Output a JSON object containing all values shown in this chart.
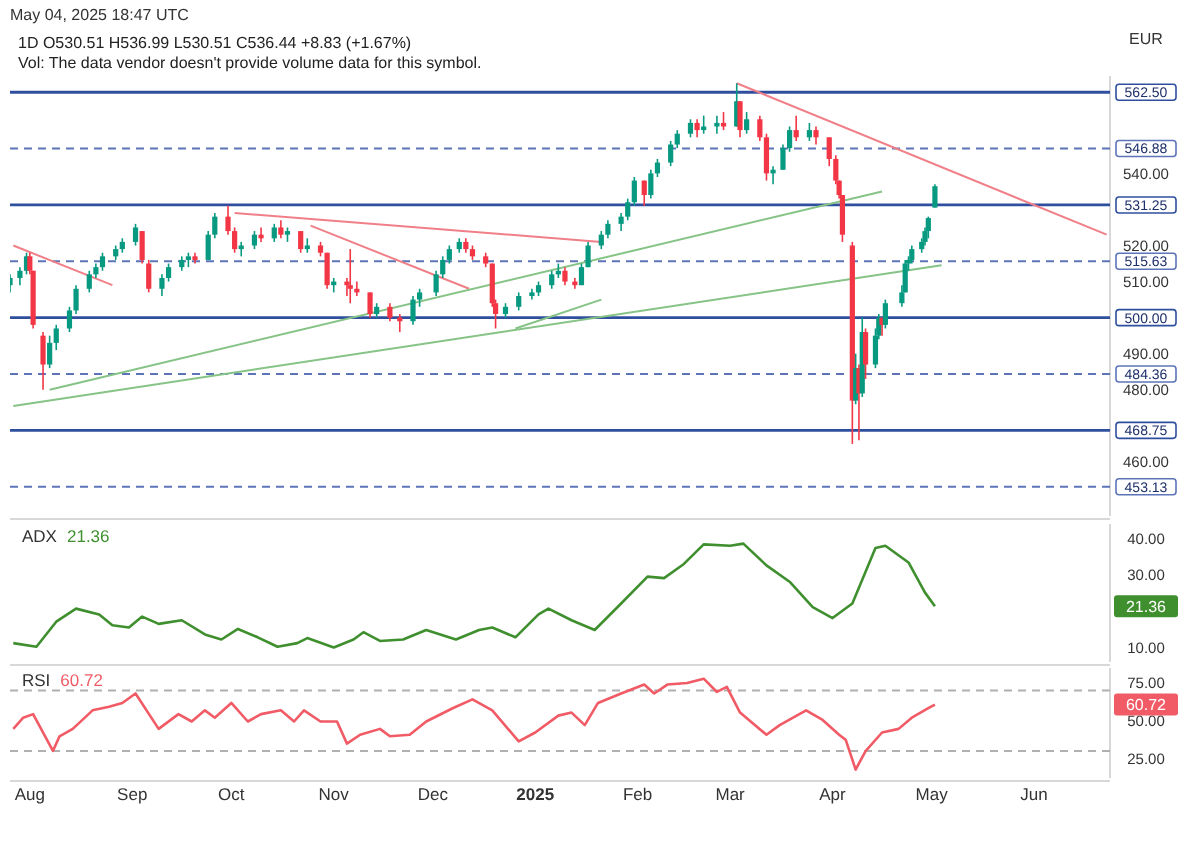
{
  "chart_data": [
    {
      "type": "candlestick",
      "title": "1D O530.51 H536.99 L530.51 C536.44 +8.83 (+1.67%)",
      "subtitle": "Vol: The data vendor doesn't provide volume data for this symbol.",
      "annotations": [
        "May 04, 2025 18:47 UTC",
        "EUR"
      ],
      "x": [
        "2024-07-26",
        "2024-07-29",
        "2024-07-31",
        "2024-08-01",
        "2024-08-02",
        "2024-08-05",
        "2024-08-07",
        "2024-08-09",
        "2024-08-13",
        "2024-08-15",
        "2024-08-19",
        "2024-08-21",
        "2024-08-23",
        "2024-08-27",
        "2024-08-29",
        "2024-09-02",
        "2024-09-04",
        "2024-09-06",
        "2024-09-10",
        "2024-09-12",
        "2024-09-16",
        "2024-09-18",
        "2024-09-20",
        "2024-09-24",
        "2024-09-26",
        "2024-09-30",
        "2024-10-02",
        "2024-10-04",
        "2024-10-08",
        "2024-10-10",
        "2024-10-14",
        "2024-10-16",
        "2024-10-18",
        "2024-10-22",
        "2024-10-24",
        "2024-10-28",
        "2024-10-30",
        "2024-11-01",
        "2024-11-05",
        "2024-11-06",
        "2024-11-08",
        "2024-11-12",
        "2024-11-14",
        "2024-11-18",
        "2024-11-21",
        "2024-11-25",
        "2024-11-27",
        "2024-12-02",
        "2024-12-04",
        "2024-12-06",
        "2024-12-09",
        "2024-12-11",
        "2024-12-13",
        "2024-12-17",
        "2024-12-19",
        "2024-12-20",
        "2024-12-23",
        "2024-12-27",
        "2024-12-31",
        "2025-01-02",
        "2025-01-06",
        "2025-01-08",
        "2025-01-10",
        "2025-01-13",
        "2025-01-15",
        "2025-01-17",
        "2025-01-21",
        "2025-01-23",
        "2025-01-27",
        "2025-01-29",
        "2025-01-31",
        "2025-02-03",
        "2025-02-05",
        "2025-02-07",
        "2025-02-11",
        "2025-02-13",
        "2025-02-17",
        "2025-02-19",
        "2025-02-21",
        "2025-02-25",
        "2025-02-27",
        "2025-03-03",
        "2025-03-04",
        "2025-03-06",
        "2025-03-10",
        "2025-03-12",
        "2025-03-14",
        "2025-03-17",
        "2025-03-19",
        "2025-03-21",
        "2025-03-25",
        "2025-03-27",
        "2025-03-31",
        "2025-04-02",
        "2025-04-03",
        "2025-04-04",
        "2025-04-07",
        "2025-04-08",
        "2025-04-09",
        "2025-04-10",
        "2025-04-11",
        "2025-04-14",
        "2025-04-15",
        "2025-04-16",
        "2025-04-17",
        "2025-04-22",
        "2025-04-23",
        "2025-04-24",
        "2025-04-25",
        "2025-04-28",
        "2025-04-29",
        "2025-04-30",
        "2025-05-02"
      ],
      "ohlc": [
        [
          509,
          512,
          507,
          511
        ],
        [
          511,
          514,
          509,
          513
        ],
        [
          513,
          518,
          512,
          517
        ],
        [
          517,
          518,
          512,
          513
        ],
        [
          513,
          513,
          497,
          498
        ],
        [
          495,
          496,
          480,
          487
        ],
        [
          487,
          495,
          486,
          493
        ],
        [
          493,
          498,
          491,
          497
        ],
        [
          497,
          503,
          496,
          502
        ],
        [
          502,
          509,
          501,
          508
        ],
        [
          508,
          513,
          507,
          512
        ],
        [
          512,
          515,
          511,
          514
        ],
        [
          514,
          518,
          513,
          517
        ],
        [
          517,
          520,
          516,
          519
        ],
        [
          519,
          522,
          518,
          521
        ],
        [
          521,
          526,
          520,
          525
        ],
        [
          524,
          524,
          515,
          516
        ],
        [
          515,
          516,
          507,
          508
        ],
        [
          508,
          512,
          506,
          511
        ],
        [
          511,
          515,
          510,
          514
        ],
        [
          514,
          517,
          513,
          516
        ],
        [
          516,
          518,
          514,
          517
        ],
        [
          517,
          518,
          515,
          516
        ],
        [
          516,
          524,
          516,
          523
        ],
        [
          523,
          529,
          522,
          528
        ],
        [
          528,
          531,
          523,
          524
        ],
        [
          524,
          525,
          518,
          519
        ],
        [
          519,
          521,
          517,
          520
        ],
        [
          520,
          524,
          519,
          523
        ],
        [
          523,
          525,
          521,
          522
        ],
        [
          522,
          526,
          521,
          525
        ],
        [
          525,
          527,
          522,
          523
        ],
        [
          523,
          525,
          521,
          524
        ],
        [
          524,
          524,
          518,
          519
        ],
        [
          519,
          522,
          518,
          520
        ],
        [
          520,
          521,
          517,
          518
        ],
        [
          518,
          518,
          508,
          509
        ],
        [
          509,
          511,
          507,
          510
        ],
        [
          510,
          511,
          506,
          509
        ],
        [
          509,
          519,
          504,
          508
        ],
        [
          508,
          510,
          506,
          507
        ],
        [
          507,
          507,
          500,
          501
        ],
        [
          501,
          504,
          500,
          503
        ],
        [
          503,
          504,
          499,
          500
        ],
        [
          500,
          501,
          496,
          499
        ],
        [
          499,
          506,
          498,
          505
        ],
        [
          505,
          508,
          503,
          507
        ],
        [
          507,
          513,
          506,
          512
        ],
        [
          512,
          517,
          511,
          516
        ],
        [
          516,
          520,
          515,
          519
        ],
        [
          519,
          522,
          518,
          521
        ],
        [
          521,
          522,
          518,
          519
        ],
        [
          519,
          520,
          516,
          517
        ],
        [
          517,
          518,
          514,
          515
        ],
        [
          515,
          515,
          503,
          504
        ],
        [
          504,
          505,
          497,
          501
        ],
        [
          501,
          504,
          500,
          503
        ],
        [
          503,
          507,
          502,
          506
        ],
        [
          506,
          508,
          505,
          507
        ],
        [
          507,
          510,
          506,
          509
        ],
        [
          509,
          513,
          508,
          512
        ],
        [
          512,
          515,
          511,
          513
        ],
        [
          513,
          514,
          509,
          510
        ],
        [
          510,
          511,
          508,
          509
        ],
        [
          509,
          515,
          509,
          514
        ],
        [
          514,
          521,
          514,
          520
        ],
        [
          520,
          524,
          519,
          523
        ],
        [
          523,
          527,
          522,
          526
        ],
        [
          526,
          529,
          524,
          528
        ],
        [
          528,
          533,
          527,
          532
        ],
        [
          532,
          539,
          531,
          538
        ],
        [
          538,
          538,
          531,
          534
        ],
        [
          534,
          541,
          533,
          540
        ],
        [
          540,
          544,
          539,
          543
        ],
        [
          543,
          549,
          542,
          548
        ],
        [
          548,
          552,
          547,
          551
        ],
        [
          551,
          555,
          550,
          554
        ],
        [
          554,
          555,
          550,
          552
        ],
        [
          552,
          556,
          551,
          553
        ],
        [
          553,
          556,
          551,
          554
        ],
        [
          554,
          557,
          552,
          553
        ],
        [
          553,
          565,
          553,
          560
        ],
        [
          560,
          560,
          550,
          552
        ],
        [
          552,
          557,
          551,
          555
        ],
        [
          555,
          556,
          549,
          550
        ],
        [
          550,
          551,
          538,
          540
        ],
        [
          540,
          542,
          537,
          541
        ],
        [
          541,
          548,
          541,
          547
        ],
        [
          547,
          553,
          546,
          552
        ],
        [
          552,
          556,
          549,
          550
        ],
        [
          550,
          554,
          549,
          552
        ],
        [
          552,
          553,
          548,
          550
        ],
        [
          550,
          550,
          542,
          544
        ],
        [
          544,
          545,
          537,
          538
        ],
        [
          538,
          538,
          533,
          534
        ],
        [
          534,
          534,
          521,
          523
        ],
        [
          520,
          521,
          465,
          477
        ],
        [
          477,
          490,
          476,
          486
        ],
        [
          486,
          487,
          466,
          479
        ],
        [
          479,
          500,
          478,
          496
        ],
        [
          496,
          497,
          483,
          487
        ],
        [
          487,
          497,
          486,
          495
        ],
        [
          495,
          501,
          494,
          500
        ],
        [
          500,
          500,
          495,
          498
        ],
        [
          498,
          505,
          497,
          504
        ],
        [
          504,
          509,
          503,
          507
        ],
        [
          507,
          516,
          507,
          515
        ],
        [
          515,
          517,
          513,
          516
        ],
        [
          516,
          520,
          515,
          519
        ],
        [
          519,
          522,
          518,
          521
        ],
        [
          521,
          525,
          520,
          524
        ],
        [
          524,
          528,
          522,
          527.61
        ],
        [
          530.51,
          536.99,
          530.51,
          536.44
        ]
      ],
      "series": [
        {
          "type": "line",
          "color": "#f07f88",
          "x": [
            "2024-07-27",
            "2024-08-26"
          ],
          "values": [
            520,
            509
          ]
        },
        {
          "type": "line",
          "color": "#f07f88",
          "x": [
            "2024-10-02",
            "2025-01-21"
          ],
          "values": [
            529,
            521
          ]
        },
        {
          "type": "line",
          "color": "#f07f88",
          "x": [
            "2024-10-25",
            "2024-12-12"
          ],
          "values": [
            525.5,
            508
          ]
        },
        {
          "type": "line",
          "color": "#f07f88",
          "x": [
            "2025-03-03",
            "2025-06-23"
          ],
          "values": [
            565,
            523
          ]
        },
        {
          "type": "line",
          "color": "#86c386",
          "x": [
            "2024-08-07",
            "2025-04-16"
          ],
          "values": [
            480,
            535
          ]
        },
        {
          "type": "line",
          "color": "#86c386",
          "x": [
            "2024-07-27",
            "2025-05-04"
          ],
          "values": [
            475.5,
            514.5
          ]
        },
        {
          "type": "line",
          "color": "#86c386",
          "x": [
            "2024-12-26",
            "2025-01-21"
          ],
          "values": [
            497,
            505
          ]
        }
      ],
      "xlim": [
        "2024-07-26",
        "2025-06-24"
      ],
      "ylim": [
        445,
        567
      ],
      "yticks": [
        {
          "value": 460,
          "label": "460.00"
        },
        {
          "value": 480,
          "label": "480.00"
        },
        {
          "value": 490,
          "label": "490.00"
        },
        {
          "value": 510,
          "label": "510.00"
        },
        {
          "value": 520,
          "label": "520.00"
        },
        {
          "value": 540,
          "label": "540.00"
        }
      ],
      "ref_lines": [
        {
          "axis": "y",
          "value": 562.5,
          "label": "562.50",
          "color": "#2f4f9e",
          "line_style": "solid"
        },
        {
          "axis": "y",
          "value": 546.88,
          "label": "546.88",
          "color": "#5d74b8",
          "line_style": "dashed"
        },
        {
          "axis": "y",
          "value": 531.25,
          "label": "531.25",
          "color": "#2f4f9e",
          "line_style": "solid"
        },
        {
          "axis": "y",
          "value": 515.63,
          "label": "515.63",
          "color": "#5d74b8",
          "line_style": "dashed"
        },
        {
          "axis": "y",
          "value": 500,
          "label": "500.00",
          "color": "#2f4f9e",
          "line_style": "solid"
        },
        {
          "axis": "y",
          "value": 484.36,
          "label": "484.36",
          "color": "#5d74b8",
          "line_style": "dashed"
        },
        {
          "axis": "y",
          "value": 468.75,
          "label": "468.75",
          "color": "#2f4f9e",
          "line_style": "solid"
        },
        {
          "axis": "y",
          "value": 453.13,
          "label": "453.13",
          "color": "#5d74b8",
          "line_style": "dashed"
        }
      ],
      "tick_labels": "y"
    },
    {
      "type": "line",
      "annotations": [
        "21.36"
      ],
      "series": [
        {
          "name": "ADX",
          "color": "#3f8f2f",
          "x": [
            "2024-07-27",
            "2024-08-03",
            "2024-08-09",
            "2024-08-15",
            "2024-08-22",
            "2024-08-26",
            "2024-08-31",
            "2024-09-04",
            "2024-09-09",
            "2024-09-16",
            "2024-09-23",
            "2024-09-28",
            "2024-10-03",
            "2024-10-09",
            "2024-10-15",
            "2024-10-21",
            "2024-10-24",
            "2024-11-01",
            "2024-11-07",
            "2024-11-10",
            "2024-11-15",
            "2024-11-22",
            "2024-11-29",
            "2024-12-08",
            "2024-12-15",
            "2024-12-19",
            "2024-12-26",
            "2025-01-02",
            "2025-01-05",
            "2025-01-12",
            "2025-01-19",
            "2025-01-27",
            "2025-02-04",
            "2025-02-09",
            "2025-02-15",
            "2025-02-21",
            "2025-03-01",
            "2025-03-05",
            "2025-03-12",
            "2025-03-19",
            "2025-03-26",
            "2025-04-01",
            "2025-04-07",
            "2025-04-14",
            "2025-04-17",
            "2025-04-24",
            "2025-04-29",
            "2025-05-02"
          ],
          "values": [
            11.2,
            10.2,
            17.1,
            20.7,
            19.1,
            16.1,
            15.5,
            18.5,
            16.5,
            17.5,
            13.6,
            12.2,
            15.1,
            12.8,
            10.2,
            11.2,
            12.6,
            10,
            12.2,
            14.2,
            11.8,
            12.2,
            14.8,
            12.2,
            14.8,
            15.5,
            12.8,
            19.1,
            20.7,
            17.5,
            14.8,
            22.1,
            29.5,
            29.1,
            33,
            38.4,
            38,
            38.6,
            32.6,
            28.1,
            21.1,
            18.1,
            22.1,
            37.4,
            38,
            33.4,
            25.1,
            21.36
          ]
        }
      ],
      "xlim": [
        "2024-07-26",
        "2025-06-24"
      ],
      "ylim": [
        6,
        44
      ],
      "yticks": [
        {
          "value": 10,
          "label": "10.00"
        },
        {
          "value": 30,
          "label": "30.00"
        },
        {
          "value": 40,
          "label": "40.00"
        }
      ],
      "tick_labels": "y"
    },
    {
      "type": "line",
      "annotations": [
        "60.72"
      ],
      "series": [
        {
          "name": "RSI",
          "color": "#f05b66",
          "x": [
            "2024-07-27",
            "2024-07-30",
            "2024-08-02",
            "2024-08-08",
            "2024-08-10",
            "2024-08-14",
            "2024-08-20",
            "2024-08-25",
            "2024-08-29",
            "2024-09-02",
            "2024-09-09",
            "2024-09-15",
            "2024-09-19",
            "2024-09-23",
            "2024-09-26",
            "2024-10-01",
            "2024-10-06",
            "2024-10-10",
            "2024-10-16",
            "2024-10-20",
            "2024-10-23",
            "2024-10-28",
            "2024-11-02",
            "2024-11-05",
            "2024-11-09",
            "2024-11-15",
            "2024-11-18",
            "2024-11-24",
            "2024-11-29",
            "2024-12-07",
            "2024-12-13",
            "2024-12-19",
            "2024-12-27",
            "2025-01-01",
            "2025-01-08",
            "2025-01-12",
            "2025-01-16",
            "2025-01-20",
            "2025-01-27",
            "2025-02-03",
            "2025-02-06",
            "2025-02-10",
            "2025-02-16",
            "2025-02-21",
            "2025-02-25",
            "2025-02-28",
            "2025-03-04",
            "2025-03-12",
            "2025-03-16",
            "2025-03-24",
            "2025-03-29",
            "2025-04-03",
            "2025-04-05",
            "2025-04-08",
            "2025-04-11",
            "2025-04-16",
            "2025-04-21",
            "2025-04-25",
            "2025-04-30",
            "2025-05-02"
          ],
          "values": [
            44.6,
            52,
            54.4,
            30,
            39.7,
            44.6,
            56.9,
            59.3,
            61.8,
            68.1,
            44.6,
            54.4,
            49.5,
            56.9,
            52,
            61.8,
            49.5,
            54.4,
            56.9,
            49.5,
            56.9,
            49.5,
            49.5,
            34.8,
            40.7,
            44.6,
            39.7,
            40.7,
            49.5,
            58.3,
            64.2,
            56.9,
            36.3,
            42.2,
            53.4,
            55.4,
            47.1,
            61.8,
            68.1,
            74,
            68.1,
            74,
            75,
            77.9,
            69.1,
            72.5,
            55.4,
            40.7,
            47.1,
            56.9,
            50.5,
            40.7,
            37.3,
            17.6,
            29.9,
            42.2,
            44.6,
            52,
            58.3,
            60.72
          ]
        }
      ],
      "xlim": [
        "2024-07-26",
        "2025-06-24"
      ],
      "ylim": [
        12,
        85
      ],
      "xticks": [
        {
          "value": "2024-08-01",
          "label": "Aug"
        },
        {
          "value": "2024-09-01",
          "label": "Sep"
        },
        {
          "value": "2024-10-01",
          "label": "Oct"
        },
        {
          "value": "2024-11-01",
          "label": "Nov"
        },
        {
          "value": "2024-12-01",
          "label": "Dec"
        },
        {
          "value": "2025-01-01",
          "label": "2025"
        },
        {
          "value": "2025-02-01",
          "label": "Feb"
        },
        {
          "value": "2025-03-01",
          "label": "Mar"
        },
        {
          "value": "2025-04-01",
          "label": "Apr"
        },
        {
          "value": "2025-05-01",
          "label": "May"
        },
        {
          "value": "2025-06-01",
          "label": "Jun"
        }
      ],
      "yticks": [
        {
          "value": 25,
          "label": "25.00"
        },
        {
          "value": 50,
          "label": "50.00"
        },
        {
          "value": 75,
          "label": "75.00"
        }
      ],
      "ref_lines": [
        {
          "axis": "y",
          "value": 70,
          "label": null,
          "color": "#b0b0b0",
          "line_style": "dashed"
        },
        {
          "axis": "y",
          "value": 30,
          "label": null,
          "color": "#b0b0b0",
          "line_style": "dashed"
        }
      ]
    }
  ]
}
